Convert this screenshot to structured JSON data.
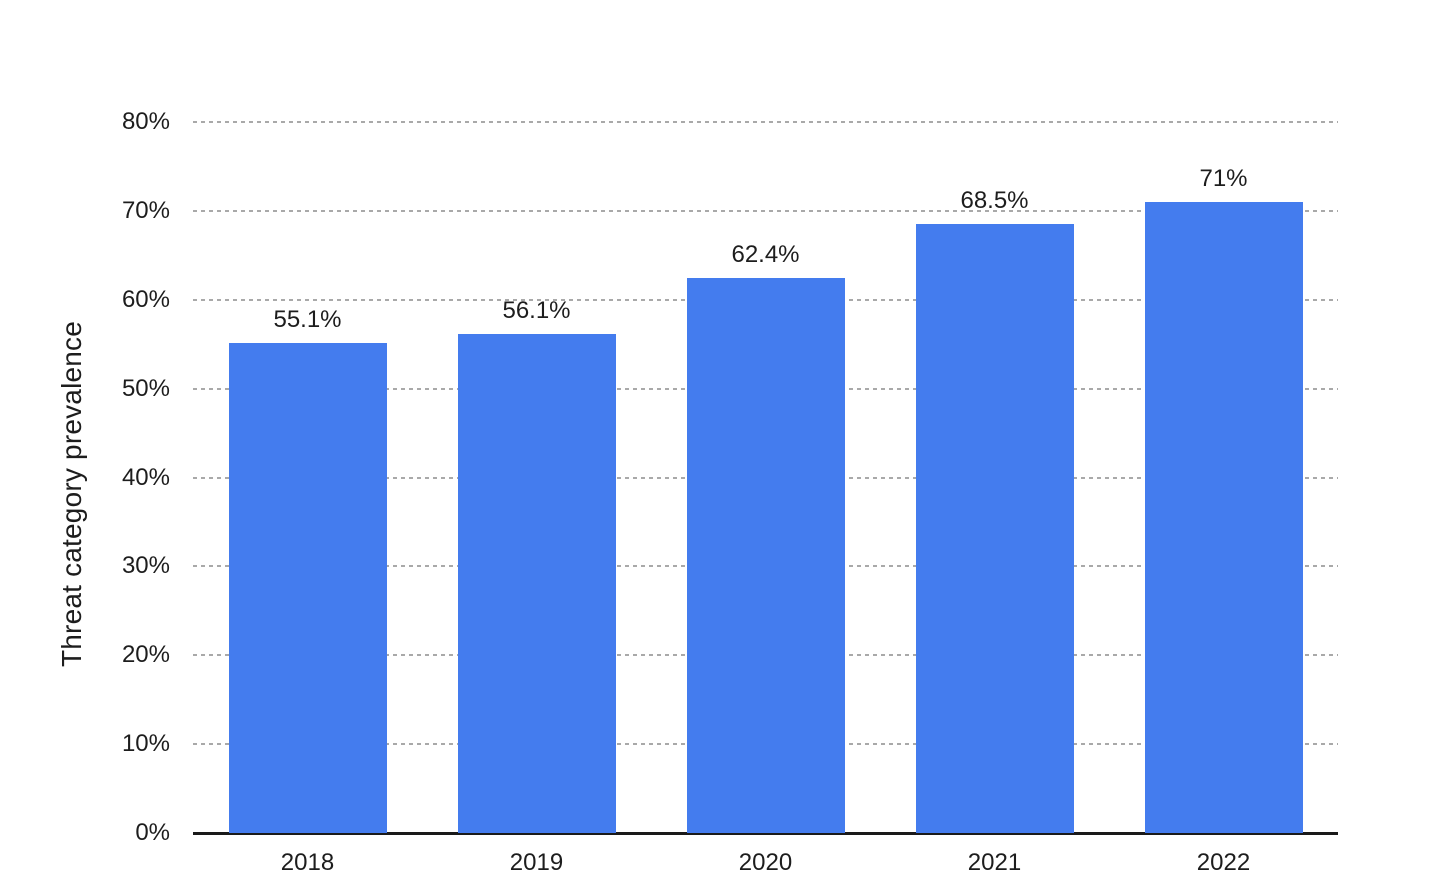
{
  "chart_data": {
    "type": "bar",
    "categories": [
      "2018",
      "2019",
      "2020",
      "2021",
      "2022"
    ],
    "values": [
      55.1,
      56.1,
      62.4,
      68.5,
      71
    ],
    "value_labels": [
      "55.1%",
      "56.1%",
      "62.4%",
      "68.5%",
      "71%"
    ],
    "ylabel": "Threat category prevalence",
    "xlabel": "",
    "ylim": [
      0,
      80
    ],
    "yticks": [
      0,
      10,
      20,
      30,
      40,
      50,
      60,
      70,
      80
    ],
    "ytick_labels": [
      "0%",
      "10%",
      "20%",
      "30%",
      "40%",
      "50%",
      "60%",
      "70%",
      "80%"
    ],
    "grid": "horizontal-dashed",
    "legend_position": "none",
    "colors": {
      "bar": "#447CEE",
      "text": "#1d1d1d",
      "gridline": "#a9a9a9",
      "axis_line": "#1a1a1a",
      "background": "#ffffff"
    }
  }
}
